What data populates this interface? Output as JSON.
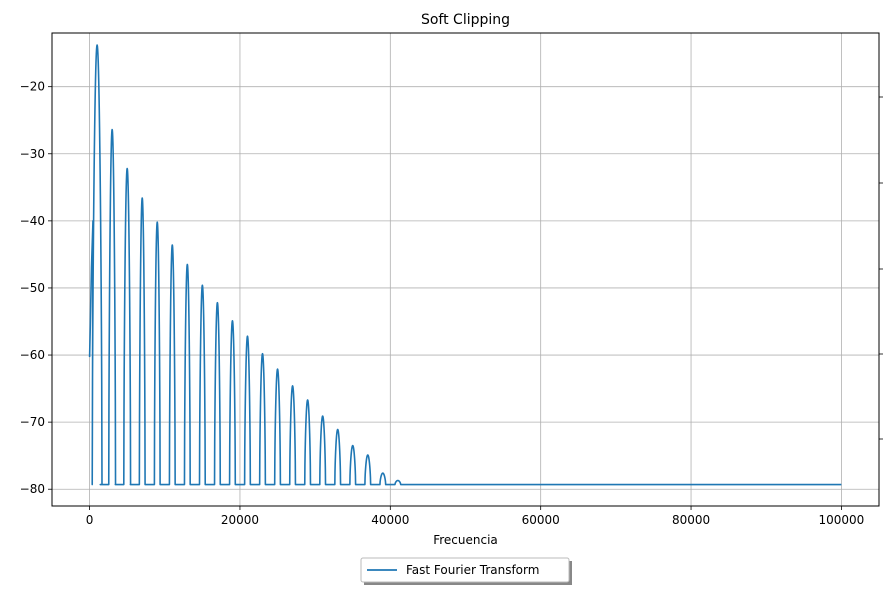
{
  "chart_data": {
    "type": "line",
    "title": "Soft Clipping",
    "xlabel": "Frecuencia",
    "ylabel": "",
    "xlim": [
      -5000,
      105000
    ],
    "ylim": [
      -82.5,
      -12
    ],
    "xticks": [
      0,
      20000,
      40000,
      60000,
      80000,
      100000
    ],
    "xtick_labels": [
      "0",
      "20000",
      "40000",
      "60000",
      "80000",
      "100000"
    ],
    "yticks": [
      -80,
      -70,
      -60,
      -50,
      -40,
      -30,
      -20
    ],
    "ytick_labels": [
      "−80",
      "−70",
      "−60",
      "−50",
      "−40",
      "−30",
      "−20"
    ],
    "grid": true,
    "legend": {
      "placement": "below-center",
      "entries": [
        "Fast Fourier Transform"
      ]
    },
    "series": [
      {
        "name": "Fast Fourier Transform",
        "color": "#1f77b4",
        "fundamental_hz": 1000,
        "floor_db": -79.3,
        "x_end": 100000,
        "harmonics": [
          {
            "x": 1000,
            "y": -13.8
          },
          {
            "x": 3000,
            "y": -26.4
          },
          {
            "x": 5000,
            "y": -32.2
          },
          {
            "x": 7000,
            "y": -36.6
          },
          {
            "x": 9000,
            "y": -40.2
          },
          {
            "x": 11000,
            "y": -43.6
          },
          {
            "x": 13000,
            "y": -46.5
          },
          {
            "x": 15000,
            "y": -49.6
          },
          {
            "x": 17000,
            "y": -52.2
          },
          {
            "x": 19000,
            "y": -54.9
          },
          {
            "x": 21000,
            "y": -57.2
          },
          {
            "x": 23000,
            "y": -59.8
          },
          {
            "x": 25000,
            "y": -62.1
          },
          {
            "x": 27000,
            "y": -64.6
          },
          {
            "x": 29000,
            "y": -66.7
          },
          {
            "x": 31000,
            "y": -69.1
          },
          {
            "x": 33000,
            "y": -71.1
          },
          {
            "x": 35000,
            "y": -73.5
          },
          {
            "x": 37000,
            "y": -74.9
          },
          {
            "x": 39000,
            "y": -77.6
          },
          {
            "x": 41000,
            "y": -78.7
          }
        ]
      }
    ]
  }
}
